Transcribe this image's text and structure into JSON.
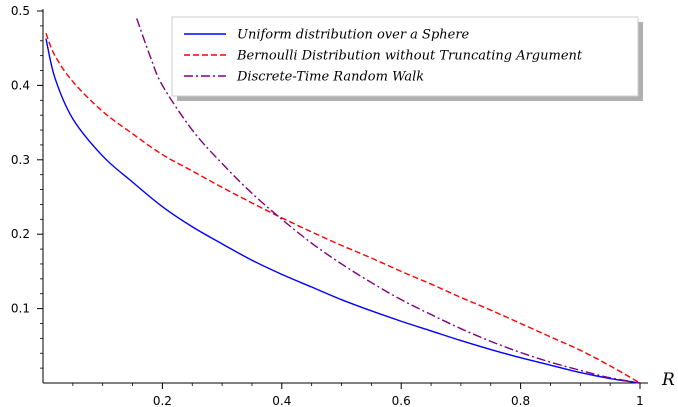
{
  "chart_data": {
    "type": "line",
    "title": "",
    "xlabel": "R",
    "ylabel": "",
    "xlim": [
      0,
      1
    ],
    "ylim": [
      0,
      0.5
    ],
    "grid": false,
    "legend_position": "top-right",
    "x_ticks": [
      0.2,
      0.4,
      0.6,
      0.8,
      1.0
    ],
    "x_tick_labels": [
      "0.2",
      "0.4",
      "0.6",
      "0.8",
      "1"
    ],
    "y_ticks": [
      0.1,
      0.2,
      0.3,
      0.4,
      0.5
    ],
    "y_tick_labels": [
      "0.1",
      "0.2",
      "0.3",
      "0.4",
      "0.5"
    ],
    "series": [
      {
        "name": "Uniform distribution over a Sphere",
        "color": "#0000ff",
        "style": "solid",
        "x": [
          0.005,
          0.02,
          0.05,
          0.1,
          0.15,
          0.2,
          0.25,
          0.3,
          0.35,
          0.4,
          0.45,
          0.5,
          0.55,
          0.6,
          0.65,
          0.7,
          0.75,
          0.8,
          0.85,
          0.9,
          0.95,
          1.0
        ],
        "y": [
          0.463,
          0.41,
          0.355,
          0.305,
          0.27,
          0.237,
          0.21,
          0.187,
          0.165,
          0.146,
          0.129,
          0.112,
          0.097,
          0.083,
          0.07,
          0.057,
          0.045,
          0.034,
          0.024,
          0.014,
          0.006,
          0.0
        ]
      },
      {
        "name": "Bernoulli Distribution without Truncating Argument",
        "color": "#ff0000",
        "style": "dashed",
        "x": [
          0.005,
          0.02,
          0.05,
          0.1,
          0.15,
          0.2,
          0.25,
          0.3,
          0.35,
          0.4,
          0.45,
          0.5,
          0.55,
          0.6,
          0.65,
          0.7,
          0.75,
          0.8,
          0.85,
          0.9,
          0.95,
          1.0
        ],
        "y": [
          0.47,
          0.44,
          0.405,
          0.365,
          0.335,
          0.307,
          0.285,
          0.263,
          0.242,
          0.222,
          0.203,
          0.185,
          0.168,
          0.15,
          0.133,
          0.115,
          0.098,
          0.08,
          0.062,
          0.044,
          0.023,
          0.0
        ]
      },
      {
        "name": "Discrete-Time Random Walk",
        "color": "#800080",
        "style": "dashdot",
        "x": [
          0.157,
          0.18,
          0.2,
          0.25,
          0.3,
          0.35,
          0.4,
          0.45,
          0.5,
          0.55,
          0.6,
          0.65,
          0.7,
          0.75,
          0.8,
          0.85,
          0.9,
          0.95,
          1.0
        ],
        "y": [
          0.49,
          0.438,
          0.4,
          0.34,
          0.295,
          0.255,
          0.22,
          0.188,
          0.16,
          0.135,
          0.112,
          0.092,
          0.073,
          0.056,
          0.041,
          0.028,
          0.017,
          0.007,
          0.0
        ]
      }
    ]
  }
}
